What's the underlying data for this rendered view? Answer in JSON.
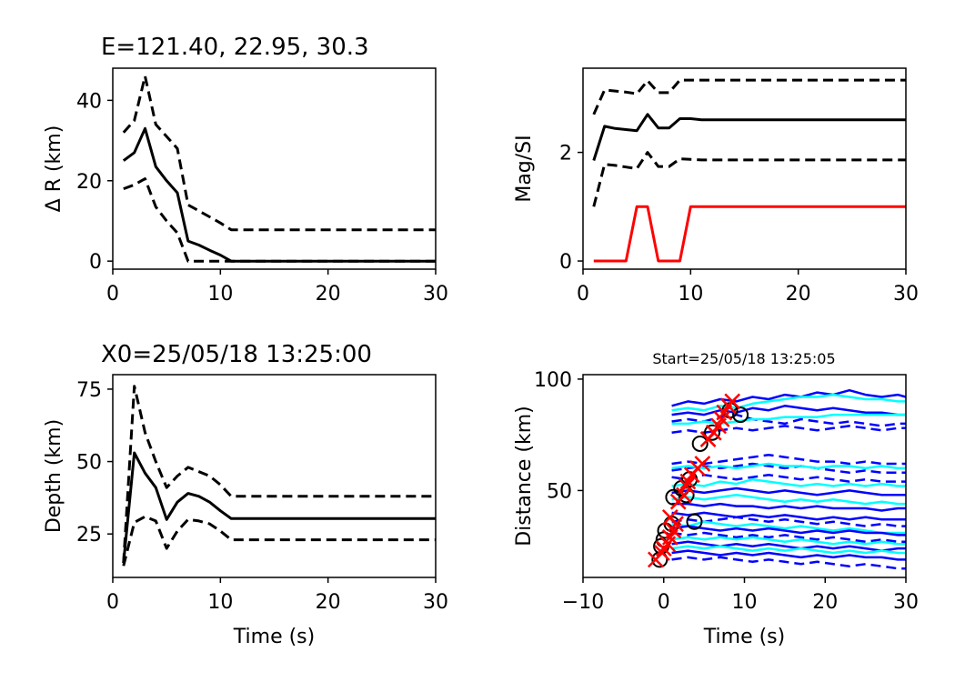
{
  "chart_data": [
    {
      "type": "line",
      "title": "E=121.40, 22.95, 30.3",
      "xlabel": "",
      "ylabel": "Δ R (km)",
      "xlim": [
        0,
        30
      ],
      "ylim": [
        -2,
        48
      ],
      "xticks": [
        0,
        10,
        20,
        30
      ],
      "yticks": [
        0,
        20,
        40
      ],
      "grid": false,
      "series": [
        {
          "style": "solid",
          "color": "#000000",
          "x": [
            1,
            2,
            3,
            4,
            5,
            6,
            7,
            8,
            9,
            10,
            11,
            30
          ],
          "y": [
            25,
            27,
            33,
            23.5,
            20,
            17,
            5,
            4,
            2.7,
            1.5,
            0,
            0
          ]
        },
        {
          "style": "dashed",
          "color": "#000000",
          "x": [
            1,
            2,
            3,
            4,
            5,
            6,
            7,
            8,
            9,
            10,
            11,
            30
          ],
          "y": [
            32,
            35,
            46,
            34,
            31,
            28,
            14,
            12.5,
            11,
            9.5,
            7.8,
            7.8
          ]
        },
        {
          "style": "dashed",
          "color": "#000000",
          "x": [
            1,
            2,
            3,
            4,
            5,
            6,
            7,
            30
          ],
          "y": [
            18,
            19,
            20.5,
            13.5,
            10,
            7,
            0,
            0
          ]
        }
      ]
    },
    {
      "type": "line",
      "title": "",
      "xlabel": "",
      "ylabel": "Mag/SI",
      "xlim": [
        0,
        30
      ],
      "ylim": [
        -0.15,
        3.55
      ],
      "xticks": [
        0,
        10,
        20,
        30
      ],
      "yticks": [
        0,
        2
      ],
      "grid": false,
      "series": [
        {
          "style": "solid",
          "color": "#000000",
          "x": [
            1,
            2,
            3,
            4,
            5,
            6,
            7,
            8,
            9,
            10,
            11,
            30
          ],
          "y": [
            1.85,
            2.48,
            2.44,
            2.42,
            2.4,
            2.7,
            2.45,
            2.45,
            2.62,
            2.62,
            2.6,
            2.6
          ]
        },
        {
          "style": "dashed",
          "color": "#000000",
          "x": [
            1,
            2,
            3,
            4,
            5,
            6,
            7,
            8,
            9,
            10,
            11,
            30
          ],
          "y": [
            2.7,
            3.15,
            3.13,
            3.11,
            3.08,
            3.32,
            3.1,
            3.1,
            3.33,
            3.33,
            3.33,
            3.33
          ]
        },
        {
          "style": "dashed",
          "color": "#000000",
          "x": [
            1,
            2,
            3,
            4,
            5,
            6,
            7,
            8,
            9,
            10,
            11,
            30
          ],
          "y": [
            1.0,
            1.78,
            1.76,
            1.73,
            1.7,
            2.0,
            1.74,
            1.74,
            1.88,
            1.87,
            1.86,
            1.86
          ]
        },
        {
          "style": "solid",
          "color": "#ff0000",
          "x": [
            1,
            2,
            3,
            4,
            5,
            6,
            7,
            8,
            9,
            10,
            30
          ],
          "y": [
            0,
            0,
            0,
            0,
            1,
            1,
            0,
            0,
            0,
            1,
            1
          ]
        }
      ]
    },
    {
      "type": "line",
      "title": "X0=25/05/18 13:25:00",
      "xlabel": "Time (s)",
      "ylabel": "Depth (km)",
      "xlim": [
        0,
        30
      ],
      "ylim": [
        10,
        80
      ],
      "xticks": [
        0,
        10,
        20,
        30
      ],
      "yticks": [
        25,
        50,
        75
      ],
      "grid": false,
      "series": [
        {
          "style": "solid",
          "color": "#000000",
          "x": [
            1,
            2,
            3,
            4,
            5,
            6,
            7,
            8,
            9,
            10,
            11,
            30
          ],
          "y": [
            15,
            53,
            46,
            41,
            30,
            36,
            39,
            38,
            36,
            33,
            30.3,
            30.3
          ]
        },
        {
          "style": "dashed",
          "color": "#000000",
          "x": [
            1,
            2,
            3,
            4,
            5,
            6,
            7,
            8,
            9,
            10,
            11,
            30
          ],
          "y": [
            15,
            76,
            60,
            50,
            41,
            45,
            48,
            46.5,
            45,
            42,
            38,
            38
          ]
        },
        {
          "style": "dashed",
          "color": "#000000",
          "x": [
            1,
            2,
            3,
            4,
            5,
            6,
            7,
            8,
            9,
            10,
            11,
            30
          ],
          "y": [
            14,
            29,
            31,
            29.5,
            20,
            26,
            30,
            29.5,
            28.5,
            26,
            23,
            23
          ]
        }
      ]
    },
    {
      "type": "scatter",
      "title": "Start=25/05/18 13:25:05",
      "xlabel": "Time (s)",
      "ylabel": "Distance (km)",
      "xlim": [
        -10,
        30
      ],
      "ylim": [
        11,
        102
      ],
      "xticks": [
        -10,
        0,
        10,
        20,
        30
      ],
      "yticks": [
        50,
        100
      ],
      "grid": false,
      "traces_x": [
        1,
        3,
        5,
        7,
        9,
        11,
        13,
        15,
        17,
        19,
        21,
        23,
        25,
        27,
        29,
        30
      ],
      "series": [
        {
          "color": "#0000ff",
          "style": "solid",
          "dist": 88,
          "y": [
            88,
            90,
            89,
            91,
            90,
            92,
            91,
            93,
            92,
            94,
            93,
            95,
            93,
            92,
            93,
            92
          ]
        },
        {
          "color": "#00ffff",
          "style": "solid",
          "dist": 86,
          "y": [
            86,
            87,
            86,
            88,
            87,
            89,
            90,
            91,
            92,
            92,
            93,
            92,
            91,
            91,
            90,
            90
          ]
        },
        {
          "color": "#0000ff",
          "style": "solid",
          "dist": 84,
          "y": [
            84,
            85,
            84,
            86,
            85,
            87,
            86,
            88,
            87,
            86,
            87,
            86,
            85,
            85,
            84,
            84
          ]
        },
        {
          "color": "#0000ff",
          "style": "dashed",
          "dist": 82,
          "y": [
            81,
            82,
            81,
            83,
            84,
            82,
            81,
            80,
            82,
            81,
            80,
            81,
            80,
            79,
            80,
            80
          ]
        },
        {
          "color": "#00ffff",
          "style": "solid",
          "dist": 80,
          "y": [
            80,
            80,
            81,
            80,
            81,
            82,
            82,
            83,
            83,
            83,
            84,
            84,
            84,
            84,
            84,
            84
          ]
        },
        {
          "color": "#0000ff",
          "style": "dashed",
          "dist": 78,
          "y": [
            76,
            77,
            76,
            77,
            78,
            77,
            78,
            79,
            78,
            77,
            78,
            79,
            78,
            77,
            78,
            78
          ]
        },
        {
          "color": "#0000ff",
          "style": "dashed",
          "dist": 63,
          "y": [
            62,
            63,
            62,
            63,
            64,
            65,
            66,
            65,
            64,
            63,
            63,
            62,
            63,
            62,
            62,
            62
          ]
        },
        {
          "color": "#0000ff",
          "style": "dashed",
          "dist": 60,
          "y": [
            59,
            60,
            61,
            60,
            61,
            62,
            61,
            60,
            61,
            60,
            59,
            58,
            59,
            58,
            58,
            58
          ]
        },
        {
          "color": "#00ffff",
          "style": "solid",
          "dist": 61,
          "y": [
            60,
            61,
            60,
            61,
            60,
            61,
            62,
            61,
            61,
            60,
            61,
            61,
            60,
            61,
            60,
            60
          ]
        },
        {
          "color": "#0000ff",
          "style": "dashed",
          "dist": 57,
          "y": [
            56,
            55,
            57,
            56,
            55,
            56,
            57,
            56,
            55,
            56,
            55,
            54,
            55,
            54,
            54,
            54
          ]
        },
        {
          "color": "#00ffff",
          "style": "solid",
          "dist": 53,
          "y": [
            52,
            53,
            52,
            54,
            53,
            55,
            54,
            53,
            52,
            53,
            52,
            53,
            52,
            53,
            52,
            52
          ]
        },
        {
          "color": "#0000ff",
          "style": "solid",
          "dist": 50,
          "y": [
            49,
            50,
            49,
            50,
            51,
            50,
            49,
            50,
            49,
            48,
            49,
            50,
            49,
            48,
            48,
            48
          ]
        },
        {
          "color": "#00ffff",
          "style": "solid",
          "dist": 47,
          "y": [
            46,
            47,
            46,
            47,
            48,
            47,
            46,
            45,
            46,
            45,
            46,
            45,
            44,
            45,
            44,
            44
          ]
        },
        {
          "color": "#0000ff",
          "style": "solid",
          "dist": 44,
          "y": [
            44,
            44,
            43,
            44,
            43,
            43,
            42,
            43,
            42,
            43,
            42,
            42,
            42,
            41,
            42,
            42
          ]
        },
        {
          "color": "#0000ff",
          "style": "solid",
          "dist": 40,
          "y": [
            40,
            39,
            40,
            39,
            38,
            39,
            38,
            39,
            38,
            37,
            38,
            37,
            38,
            37,
            37,
            37
          ]
        },
        {
          "color": "#0000ff",
          "style": "dashed",
          "dist": 38,
          "y": [
            36,
            37,
            36,
            37,
            38,
            37,
            36,
            37,
            36,
            35,
            36,
            35,
            34,
            35,
            34,
            34
          ]
        },
        {
          "color": "#00ffff",
          "style": "solid",
          "dist": 36,
          "y": [
            35,
            34,
            36,
            35,
            34,
            35,
            34,
            33,
            34,
            33,
            32,
            33,
            32,
            31,
            31,
            31
          ]
        },
        {
          "color": "#0000ff",
          "style": "solid",
          "dist": 34,
          "y": [
            33,
            34,
            33,
            32,
            33,
            32,
            33,
            32,
            31,
            32,
            31,
            32,
            31,
            31,
            30,
            30
          ]
        },
        {
          "color": "#0000ff",
          "style": "dashed",
          "dist": 32,
          "y": [
            31,
            30,
            31,
            30,
            29,
            30,
            29,
            30,
            29,
            28,
            29,
            28,
            27,
            28,
            27,
            27
          ]
        },
        {
          "color": "#00ffff",
          "style": "solid",
          "dist": 29,
          "y": [
            28,
            29,
            28,
            29,
            28,
            29,
            28,
            27,
            28,
            27,
            26,
            27,
            26,
            27,
            26,
            26
          ]
        },
        {
          "color": "#0000ff",
          "style": "solid",
          "dist": 27,
          "y": [
            26,
            27,
            26,
            25,
            26,
            25,
            26,
            25,
            24,
            25,
            24,
            25,
            24,
            23,
            24,
            24
          ]
        },
        {
          "color": "#00ffff",
          "style": "solid",
          "dist": 25,
          "y": [
            24,
            25,
            24,
            25,
            24,
            23,
            24,
            23,
            24,
            23,
            22,
            23,
            22,
            23,
            22,
            22
          ]
        },
        {
          "color": "#0000ff",
          "style": "solid",
          "dist": 23,
          "y": [
            22,
            23,
            22,
            21,
            22,
            21,
            22,
            21,
            20,
            21,
            20,
            21,
            20,
            20,
            19,
            19
          ]
        },
        {
          "color": "#0000ff",
          "style": "dashed",
          "dist": 20,
          "y": [
            19,
            20,
            19,
            20,
            19,
            18,
            19,
            18,
            17,
            18,
            17,
            16,
            17,
            16,
            15,
            15
          ]
        }
      ],
      "circles": [
        {
          "x": -0.5,
          "y": 19
        },
        {
          "x": -0.3,
          "y": 25
        },
        {
          "x": 0,
          "y": 28
        },
        {
          "x": 0.2,
          "y": 32
        },
        {
          "x": 1,
          "y": 35
        },
        {
          "x": 3.8,
          "y": 36
        },
        {
          "x": 1.2,
          "y": 47
        },
        {
          "x": 2.2,
          "y": 51
        },
        {
          "x": 3.2,
          "y": 55
        },
        {
          "x": 2.8,
          "y": 48
        },
        {
          "x": 4.5,
          "y": 71
        },
        {
          "x": 6,
          "y": 76
        },
        {
          "x": 8.2,
          "y": 86
        },
        {
          "x": 9.5,
          "y": 84
        }
      ],
      "crosses": [
        {
          "x": -1,
          "y": 19
        },
        {
          "x": -0.2,
          "y": 22
        },
        {
          "x": 0,
          "y": 24
        },
        {
          "x": 0.5,
          "y": 26
        },
        {
          "x": 0.8,
          "y": 29
        },
        {
          "x": 1.2,
          "y": 32
        },
        {
          "x": 1.5,
          "y": 35
        },
        {
          "x": 0.8,
          "y": 38
        },
        {
          "x": 1.8,
          "y": 45
        },
        {
          "x": 2.5,
          "y": 48
        },
        {
          "x": 2.8,
          "y": 52
        },
        {
          "x": 3,
          "y": 54
        },
        {
          "x": 3.5,
          "y": 57
        },
        {
          "x": 4.2,
          "y": 60
        },
        {
          "x": 4.8,
          "y": 62
        },
        {
          "x": 5.5,
          "y": 73
        },
        {
          "x": 6.2,
          "y": 76
        },
        {
          "x": 6.8,
          "y": 79
        },
        {
          "x": 7.2,
          "y": 82
        },
        {
          "x": 7.5,
          "y": 85
        },
        {
          "x": 8,
          "y": 88
        },
        {
          "x": 8.5,
          "y": 90
        }
      ]
    }
  ]
}
